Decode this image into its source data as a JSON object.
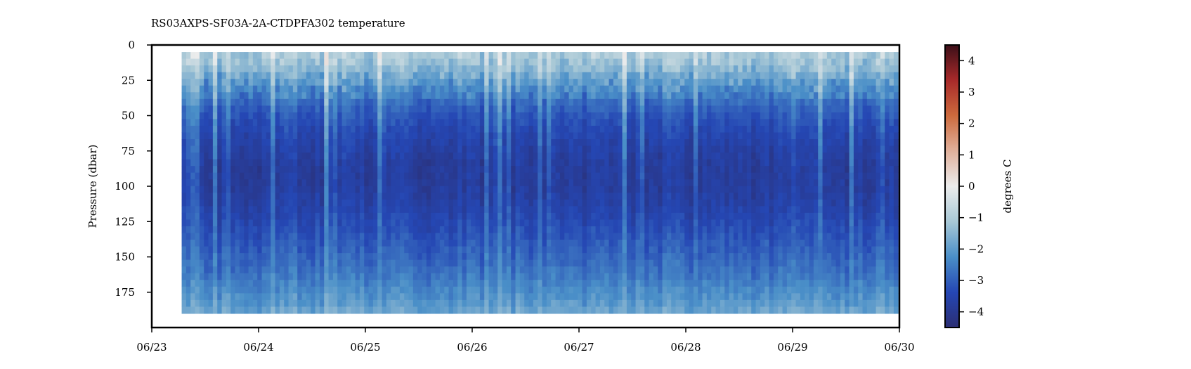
{
  "chart_data": {
    "type": "heatmap",
    "title": "RS03AXPS-SF03A-2A-CTDPFA302 temperature",
    "xlabel": "",
    "ylabel": "Pressure (dbar)",
    "x_ticks": [
      "06/23",
      "06/24",
      "06/25",
      "06/26",
      "06/27",
      "06/28",
      "06/29",
      "06/30"
    ],
    "xlim": [
      "06/23",
      "06/30"
    ],
    "y_ticks": [
      0,
      25,
      50,
      75,
      100,
      125,
      150,
      175
    ],
    "ylim": [
      200,
      0
    ],
    "data_extent": {
      "x": [
        0.28,
        6.98
      ],
      "pressure": [
        5,
        190
      ]
    },
    "time_bins_per_day": 24,
    "pressure_bins": 39,
    "profile": {
      "pressure": [
        5,
        15,
        25,
        35,
        45,
        55,
        70,
        85,
        100,
        115,
        130,
        145,
        160,
        175,
        185,
        190
      ],
      "temperature": [
        -1.1,
        -1.5,
        -2.1,
        -2.6,
        -3.0,
        -3.3,
        -3.6,
        -3.8,
        -3.8,
        -3.6,
        -3.3,
        -3.0,
        -2.7,
        -2.3,
        -2.0,
        -1.8
      ]
    },
    "colorbar": {
      "label": "degrees C",
      "range": [
        -4.5,
        4.5
      ],
      "ticks": [
        4,
        3,
        2,
        1,
        0,
        -1,
        -2,
        -3,
        -4
      ],
      "tick_labels": [
        "4",
        "3",
        "2",
        "1",
        "0",
        "−1",
        "−2",
        "−3",
        "−4"
      ],
      "colors": [
        "#2b2e73",
        "#2547b4",
        "#4a8fc8",
        "#a8c8d6",
        "#ececec",
        "#e0b09b",
        "#cd6a3d",
        "#a82a2a",
        "#3c0f18"
      ]
    }
  }
}
